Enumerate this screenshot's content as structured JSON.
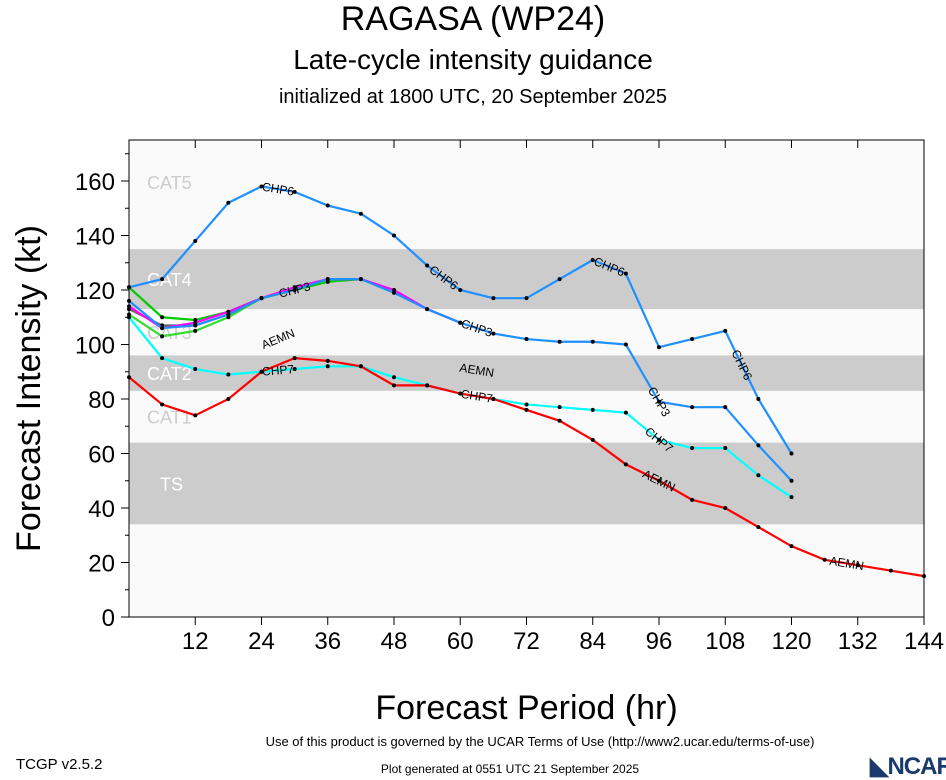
{
  "chart_data": {
    "type": "line",
    "title": "RAGASA (WP24)",
    "subtitle": "Late-cycle intensity guidance",
    "subtitle2": "initialized at 1800 UTC, 20 September 2025",
    "xlabel": "Forecast Period (hr)",
    "ylabel": "Forecast Intensity (kt)",
    "xlim": [
      0,
      144
    ],
    "ylim": [
      0,
      175
    ],
    "xticks": [
      12,
      24,
      36,
      48,
      60,
      72,
      84,
      96,
      108,
      120,
      132,
      144
    ],
    "yticks": [
      0,
      20,
      40,
      60,
      80,
      100,
      120,
      140,
      160
    ],
    "bands": [
      {
        "name": "TS",
        "range": [
          34,
          64
        ],
        "shaded": true
      },
      {
        "name": "CAT1",
        "range": [
          64,
          83
        ],
        "shaded": false
      },
      {
        "name": "CAT2",
        "range": [
          83,
          96
        ],
        "shaded": true
      },
      {
        "name": "CAT3",
        "range": [
          96,
          113
        ],
        "shaded": false
      },
      {
        "name": "CAT4",
        "range": [
          113,
          135
        ],
        "shaded": true
      },
      {
        "name": "CAT5",
        "range": [
          135,
          175
        ],
        "shaded": false
      }
    ],
    "series": [
      {
        "name": "CHP6",
        "color": "#1e90ff",
        "label_hours": [
          27,
          57,
          87,
          111
        ],
        "x": [
          0,
          6,
          12,
          18,
          24,
          30,
          36,
          42,
          48,
          54,
          60,
          66,
          72,
          78,
          84,
          90,
          96,
          102,
          108,
          114,
          120
        ],
        "y": [
          121,
          124,
          138,
          152,
          158,
          156,
          151,
          148,
          140,
          129,
          120,
          117,
          117,
          124,
          131,
          126,
          99,
          102,
          105,
          80,
          60
        ]
      },
      {
        "name": "",
        "color": "#00cc00",
        "x": [
          0,
          6,
          12,
          18,
          24,
          30,
          36,
          42
        ],
        "y": [
          121,
          110,
          109,
          112,
          117,
          120,
          123,
          124
        ]
      },
      {
        "name": "",
        "color": "#33dd33",
        "x": [
          0,
          6,
          12,
          18,
          24
        ],
        "y": [
          111,
          103,
          105,
          110,
          117
        ]
      },
      {
        "name": "",
        "color": "#666666",
        "x": [
          0,
          6,
          12,
          18,
          24
        ],
        "y": [
          113,
          107,
          107,
          111,
          117
        ]
      },
      {
        "name": "",
        "color": "#ff00ff",
        "x": [
          0,
          6,
          12,
          18,
          24,
          30,
          36,
          42,
          48,
          54,
          60
        ],
        "y": [
          114,
          106,
          108,
          112,
          117,
          121,
          124,
          124,
          120,
          113,
          108
        ]
      },
      {
        "name": "CHP3",
        "color": "#1e90ff",
        "label_hours": [
          30,
          63,
          96
        ],
        "x": [
          0,
          6,
          12,
          18,
          24,
          30,
          36,
          42,
          48,
          54,
          60,
          66,
          72,
          78,
          84,
          90,
          96,
          102,
          108,
          114,
          120
        ],
        "y": [
          116,
          106,
          107,
          111,
          117,
          120,
          124,
          124,
          119,
          113,
          108,
          104,
          102,
          101,
          101,
          100,
          79,
          77,
          77,
          63,
          50
        ]
      },
      {
        "name": "CHP7",
        "color": "#00ffff",
        "label_hours": [
          27,
          63,
          96
        ],
        "x": [
          0,
          6,
          12,
          18,
          24,
          30,
          36,
          42,
          48,
          54,
          60,
          66,
          72,
          78,
          84,
          90,
          96,
          102,
          108,
          114,
          120
        ],
        "y": [
          110,
          95,
          91,
          89,
          90,
          91,
          92,
          92,
          88,
          85,
          82,
          80,
          78,
          77,
          76,
          75,
          65,
          62,
          62,
          52,
          44
        ]
      },
      {
        "name": "AEMN",
        "color": "#ff0000",
        "label_hours": [
          27,
          63,
          96,
          130
        ],
        "x": [
          0,
          6,
          12,
          18,
          24,
          30,
          36,
          42,
          48,
          54,
          60,
          66,
          72,
          78,
          84,
          90,
          96,
          102,
          108,
          114,
          120,
          126,
          132,
          138,
          144
        ],
        "y": [
          88,
          78,
          74,
          80,
          90,
          95,
          94,
          92,
          85,
          85,
          82,
          80,
          76,
          72,
          65,
          56,
          50,
          43,
          40,
          33,
          26,
          21,
          19,
          17,
          15
        ]
      }
    ]
  },
  "footer": {
    "terms": "Use of this product is governed by the UCAR Terms of Use (http://www2.ucar.edu/terms-of-use)",
    "generated": "Plot generated at 0551 UTC   21 September 2025",
    "version": "TCGP v2.5.2",
    "logo": "NCAR"
  }
}
